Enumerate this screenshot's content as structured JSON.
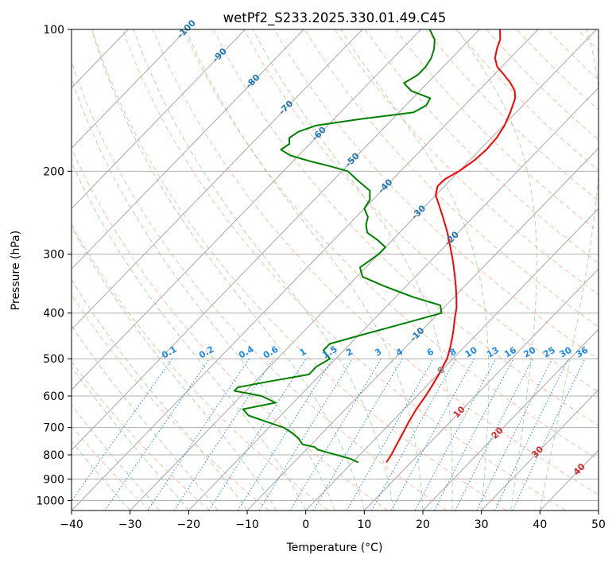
{
  "chart_data": {
    "type": "line",
    "title": "wetPf2_S233.2025.330.01.49.C45",
    "xlabel": "Temperature (°C)",
    "ylabel": "Pressure (hPa)",
    "xlim": [
      -40,
      50
    ],
    "ylim": [
      1050,
      100
    ],
    "y_scale": "log",
    "grid": true,
    "x_ticks": [
      -40,
      -30,
      -20,
      -10,
      0,
      10,
      20,
      30,
      40,
      50
    ],
    "x_tick_labels": [
      "−40",
      "−30",
      "−20",
      "−10",
      "0",
      "10",
      "20",
      "30",
      "40",
      "50"
    ],
    "y_ticks": [
      100,
      200,
      300,
      400,
      500,
      600,
      700,
      800,
      900,
      1000
    ],
    "y_tick_labels": [
      "100",
      "200",
      "300",
      "400",
      "500",
      "600",
      "700",
      "800",
      "900",
      "1000"
    ],
    "colors": {
      "temperature": "#ff0000",
      "dewpoint": "#008000",
      "isotherm": "#a8a8a8",
      "dry_adiabat": "#f4a582",
      "moist_adiabat": "#9ccc9c",
      "mixing_ratio": "#1f88e5",
      "isotherm_label": "#1f77b4",
      "moist_label": "#d62728",
      "zero_label": "#808080"
    },
    "series": [
      {
        "key": "temperature",
        "p": [
          830,
          800,
          760,
          720,
          680,
          640,
          600,
          570,
          540,
          500,
          470,
          440,
          410,
          390,
          370,
          350,
          330,
          310,
          290,
          270,
          250,
          235,
          225,
          215,
          208,
          200,
          190,
          180,
          170,
          160,
          150,
          140,
          135,
          130,
          125,
          120,
          115,
          110,
          105,
          100
        ],
        "t": [
          5.8,
          5.4,
          4.6,
          3.8,
          2.9,
          2.1,
          1.5,
          0.9,
          0.2,
          -1.0,
          -2.5,
          -4.3,
          -6.4,
          -7.8,
          -9.6,
          -11.6,
          -13.8,
          -16.2,
          -18.9,
          -21.8,
          -25.2,
          -28.0,
          -30.0,
          -31.2,
          -31.1,
          -30.0,
          -29.2,
          -28.9,
          -29.1,
          -29.8,
          -31.0,
          -32.5,
          -33.8,
          -35.8,
          -38.2,
          -40.8,
          -42.6,
          -43.8,
          -44.8,
          -46.5
        ]
      },
      {
        "key": "dewpoint",
        "p": [
          830,
          815,
          800,
          790,
          780,
          770,
          760,
          740,
          720,
          700,
          680,
          660,
          640,
          620,
          600,
          585,
          575,
          560,
          540,
          520,
          500,
          480,
          465,
          445,
          420,
          400,
          385,
          370,
          350,
          335,
          320,
          300,
          290,
          280,
          270,
          260,
          250,
          240,
          230,
          220,
          210,
          200,
          195,
          190,
          185,
          180,
          175,
          170,
          165,
          160,
          155,
          150,
          145,
          140,
          135,
          130,
          125,
          120,
          115,
          110,
          105,
          100
        ],
        "t": [
          1.0,
          -1.0,
          -4.0,
          -6.0,
          -8.0,
          -9.0,
          -11.5,
          -13.0,
          -15.0,
          -17.5,
          -21.5,
          -25.5,
          -27.5,
          -23.0,
          -26.5,
          -32.0,
          -32.0,
          -28.0,
          -22.0,
          -22.0,
          -21.0,
          -23.5,
          -23.5,
          -19.5,
          -14.0,
          -9.5,
          -11.0,
          -17.0,
          -24.0,
          -29.0,
          -31.0,
          -30.0,
          -30.0,
          -32.5,
          -35.5,
          -37.0,
          -38.0,
          -40.0,
          -40.5,
          -42.0,
          -45.5,
          -49.0,
          -53.0,
          -57.5,
          -61.5,
          -64.0,
          -63.5,
          -64.5,
          -64.0,
          -62.0,
          -55.5,
          -47.5,
          -46.5,
          -47.0,
          -51.5,
          -54.0,
          -53.0,
          -53.0,
          -53.5,
          -54.5,
          -56.0,
          -58.5
        ]
      }
    ],
    "isotherm_labels": [
      "-100",
      "-90",
      "-80",
      "-70",
      "-60",
      "-50",
      "-40",
      "-30",
      "-20",
      "-10",
      "0",
      "10",
      "20",
      "30",
      "40"
    ],
    "mixing_ratio_labels": [
      "0.1",
      "0.2",
      "0.4",
      "0.6",
      "1",
      "1.5",
      "2",
      "3",
      "4",
      "6",
      "8",
      "10",
      "13",
      "16",
      "20",
      "25",
      "30",
      "36"
    ]
  }
}
